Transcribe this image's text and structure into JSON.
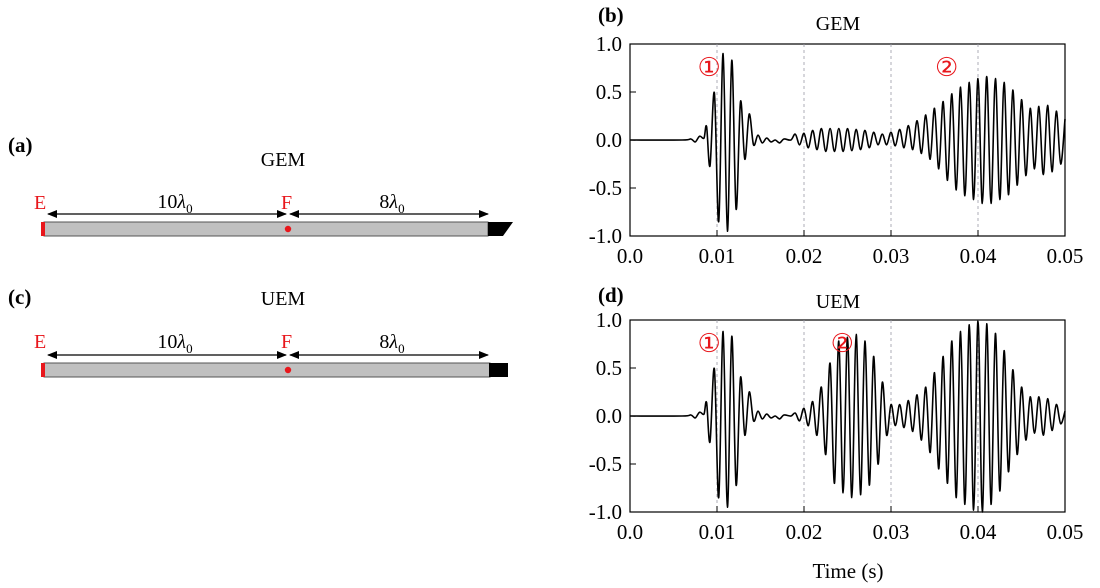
{
  "colors": {
    "marker": "#e8171c",
    "bar_fill": "#c0c0c0",
    "line": "#000000",
    "grid": "#9a9aa6"
  },
  "diagrams": [
    {
      "panel_label": "(a)",
      "title": "GEM",
      "left_label": "E",
      "mid_label": "F",
      "left_span": "10λ0",
      "right_span": "8λ0",
      "end_shape": "wedge"
    },
    {
      "panel_label": "(c)",
      "title": "UEM",
      "left_label": "E",
      "mid_label": "F",
      "left_span": "10λ0",
      "right_span": "8λ0",
      "end_shape": "block"
    }
  ],
  "chart_data": [
    {
      "type": "line",
      "panel_label": "(b)",
      "title": "GEM",
      "xlabel": "",
      "ylabel": "",
      "xlim": [
        0,
        0.05
      ],
      "ylim": [
        -1,
        1
      ],
      "xticks": [
        "0.0",
        "0.01",
        "0.02",
        "0.03",
        "0.04",
        "0.05"
      ],
      "yticks": [
        "1.0",
        "0.5",
        "0.0",
        "-0.5",
        "-1.0"
      ],
      "dashed_gridlines_x": [
        0.01,
        0.02,
        0.03,
        0.04
      ],
      "annotations": [
        {
          "text": "①",
          "x": 0.0091,
          "y": 0.76
        },
        {
          "text": "②",
          "x": 0.0364,
          "y": 0.76
        }
      ],
      "series": [
        {
          "x": [
            0,
            0.006,
            0.007,
            0.0075,
            0.008,
            0.0085,
            0.0088,
            0.0092,
            0.0097,
            0.0102,
            0.0107,
            0.0112,
            0.0117,
            0.0122,
            0.0127,
            0.0132,
            0.0137,
            0.0142,
            0.0147,
            0.0152,
            0.0157,
            0.0162,
            0.0167,
            0.0172,
            0.0177,
            0.0185,
            0.019,
            0.0195,
            0.02,
            0.0205,
            0.021,
            0.0215,
            0.022,
            0.0225,
            0.023,
            0.0235,
            0.024,
            0.0245,
            0.025,
            0.0255,
            0.026,
            0.0265,
            0.027,
            0.0275,
            0.028,
            0.0285,
            0.029,
            0.0295,
            0.03,
            0.0305,
            0.031,
            0.0315,
            0.032,
            0.0325,
            0.033,
            0.0335,
            0.034,
            0.0345,
            0.035,
            0.0355,
            0.036,
            0.0365,
            0.037,
            0.0375,
            0.038,
            0.0385,
            0.039,
            0.0395,
            0.04,
            0.0405,
            0.041,
            0.0415,
            0.042,
            0.0425,
            0.043,
            0.0435,
            0.044,
            0.0445,
            0.045,
            0.0455,
            0.046,
            0.0465,
            0.047,
            0.0475,
            0.048,
            0.0485,
            0.049,
            0.0495,
            0.05
          ],
          "y": [
            0,
            0,
            0.01,
            -0.02,
            0.04,
            0.02,
            0.14,
            -0.27,
            0.49,
            -0.85,
            0.9,
            -0.95,
            0.83,
            -0.72,
            0.4,
            -0.2,
            0.27,
            -0.05,
            0.05,
            -0.03,
            0.02,
            -0.02,
            0,
            -0.03,
            0.01,
            0,
            0.06,
            -0.05,
            0.07,
            -0.08,
            0.1,
            -0.1,
            0.12,
            -0.12,
            0.12,
            -0.12,
            0.12,
            -0.12,
            0.12,
            -0.11,
            0.11,
            -0.1,
            0.1,
            -0.08,
            0.08,
            -0.05,
            0.06,
            -0.05,
            0.08,
            -0.06,
            0.11,
            -0.08,
            0.15,
            -0.1,
            0.2,
            -0.14,
            0.26,
            -0.2,
            0.33,
            -0.3,
            0.4,
            -0.42,
            0.48,
            -0.52,
            0.55,
            -0.58,
            0.6,
            -0.62,
            0.64,
            -0.66,
            0.66,
            -0.66,
            0.64,
            -0.62,
            0.6,
            -0.57,
            0.52,
            -0.47,
            0.42,
            -0.37,
            0.33,
            -0.3,
            0.35,
            -0.36,
            0.36,
            -0.33,
            0.3,
            -0.25,
            0.22
          ]
        }
      ]
    },
    {
      "type": "line",
      "panel_label": "(d)",
      "title": "UEM",
      "xlabel": "Time (s)",
      "ylabel": "",
      "xlim": [
        0,
        0.05
      ],
      "ylim": [
        -1,
        1
      ],
      "xticks": [
        "0.0",
        "0.01",
        "0.02",
        "0.03",
        "0.04",
        "0.05"
      ],
      "yticks": [
        "1.0",
        "0.5",
        "0.0",
        "-0.5",
        "-1.0"
      ],
      "dashed_gridlines_x": [
        0.01,
        0.02,
        0.03,
        0.04
      ],
      "annotations": [
        {
          "text": "①",
          "x": 0.0091,
          "y": 0.76
        },
        {
          "text": "②",
          "x": 0.0244,
          "y": 0.76
        }
      ],
      "series": [
        {
          "x": [
            0,
            0.006,
            0.007,
            0.0075,
            0.008,
            0.0085,
            0.0088,
            0.0092,
            0.0097,
            0.0102,
            0.0107,
            0.0112,
            0.0117,
            0.0122,
            0.0127,
            0.0132,
            0.0137,
            0.0142,
            0.0147,
            0.0152,
            0.0157,
            0.0162,
            0.0167,
            0.0172,
            0.0177,
            0.0185,
            0.019,
            0.0195,
            0.02,
            0.0205,
            0.021,
            0.0215,
            0.022,
            0.0225,
            0.023,
            0.0235,
            0.024,
            0.0245,
            0.025,
            0.0255,
            0.026,
            0.0265,
            0.027,
            0.0275,
            0.028,
            0.0285,
            0.029,
            0.0295,
            0.03,
            0.0305,
            0.031,
            0.0315,
            0.032,
            0.0325,
            0.033,
            0.0335,
            0.034,
            0.0345,
            0.035,
            0.0355,
            0.036,
            0.0365,
            0.037,
            0.0375,
            0.038,
            0.0385,
            0.039,
            0.0395,
            0.04,
            0.0405,
            0.041,
            0.0415,
            0.042,
            0.0425,
            0.043,
            0.0435,
            0.044,
            0.0445,
            0.045,
            0.0455,
            0.046,
            0.0465,
            0.047,
            0.0475,
            0.048,
            0.0485,
            0.049,
            0.0495,
            0.05
          ],
          "y": [
            0,
            0,
            0.01,
            -0.02,
            0.04,
            0.02,
            0.14,
            -0.27,
            0.49,
            -0.85,
            0.88,
            -0.95,
            0.83,
            -0.72,
            0.4,
            -0.2,
            0.25,
            -0.05,
            0.05,
            -0.03,
            0.02,
            -0.02,
            0,
            -0.03,
            0.01,
            0,
            0.03,
            -0.05,
            0.08,
            -0.1,
            0.15,
            -0.2,
            0.3,
            -0.4,
            0.55,
            -0.7,
            0.78,
            -0.8,
            0.82,
            -0.85,
            0.85,
            -0.82,
            0.78,
            -0.72,
            0.62,
            -0.5,
            0.35,
            -0.2,
            0.12,
            -0.1,
            0.12,
            -0.12,
            0.16,
            -0.16,
            0.22,
            -0.25,
            0.3,
            -0.38,
            0.45,
            -0.55,
            0.62,
            -0.7,
            0.78,
            -0.85,
            0.88,
            -0.92,
            0.95,
            -0.98,
            0.99,
            -1.0,
            0.96,
            -0.92,
            0.86,
            -0.78,
            0.68,
            -0.58,
            0.48,
            -0.4,
            0.3,
            -0.25,
            0.2,
            -0.18,
            0.2,
            -0.2,
            0.18,
            -0.15,
            0.12,
            -0.08,
            0.05
          ]
        }
      ]
    }
  ]
}
